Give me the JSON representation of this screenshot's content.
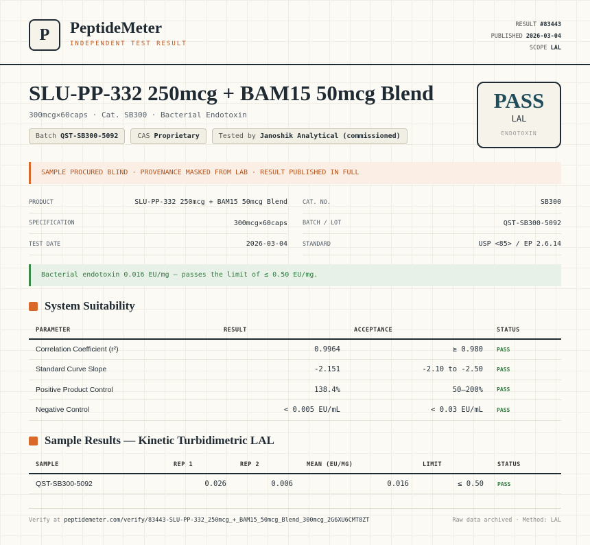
{
  "header": {
    "logo": "P",
    "brand": "PeptideMeter",
    "tagline": "INDEPENDENT TEST RESULT",
    "meta": [
      {
        "label": "RESULT",
        "value": "#83443"
      },
      {
        "label": "PUBLISHED",
        "value": "2026-03-04"
      },
      {
        "label": "SCOPE",
        "value": "LAL"
      }
    ]
  },
  "title": "SLU-PP-332 250mcg + BAM15 50mcg Blend",
  "subtitle": "300mcg×60caps · Cat. SB300 · Bacterial Endotoxin",
  "chips": [
    {
      "label": "Batch",
      "value": "QST-SB300-5092"
    },
    {
      "label": "CAS",
      "value": "Proprietary"
    },
    {
      "label": "Tested by",
      "value": "Janoshik Analytical (commissioned)"
    }
  ],
  "verdict": {
    "result": "PASS",
    "method": "LAL",
    "scope": "ENDOTOXIN"
  },
  "notice": "SAMPLE PROCURED BLIND · PROVENANCE MASKED FROM LAB · RESULT PUBLISHED IN FULL",
  "details": [
    [
      {
        "label": "PRODUCT",
        "value": "SLU-PP-332 250mcg + BAM15 50mcg Blend"
      },
      {
        "label": "CAT. NO.",
        "value": "SB300"
      }
    ],
    [
      {
        "label": "SPECIFICATION",
        "value": "300mcg×60caps"
      },
      {
        "label": "BATCH / LOT",
        "value": "QST-SB300-5092"
      }
    ],
    [
      {
        "label": "TEST DATE",
        "value": "2026-03-04"
      },
      {
        "label": "STANDARD",
        "value": "USP <85> / EP 2.6.14"
      }
    ]
  ],
  "summary": "Bacterial endotoxin 0.016 EU/mg — passes the limit of ≤ 0.50 EU/mg.",
  "suitability": {
    "title": "System Suitability",
    "columns": [
      "PARAMETER",
      "RESULT",
      "ACCEPTANCE",
      "STATUS"
    ],
    "rows": [
      [
        "Correlation Coefficient (r²)",
        "0.9964",
        "≥ 0.980",
        "PASS"
      ],
      [
        "Standard Curve Slope",
        "-2.151",
        "-2.10 to -2.50",
        "PASS"
      ],
      [
        "Positive Product Control",
        "138.4%",
        "50–200%",
        "PASS"
      ],
      [
        "Negative Control",
        "< 0.005 EU/mL",
        "< 0.03 EU/mL",
        "PASS"
      ]
    ]
  },
  "samples": {
    "title": "Sample Results — Kinetic Turbidimetric LAL",
    "columns": [
      "SAMPLE",
      "REP 1",
      "REP 2",
      "MEAN (EU/MG)",
      "LIMIT",
      "STATUS"
    ],
    "rows": [
      [
        "QST-SB300-5092",
        "0.026",
        "0.006",
        "0.016",
        "≤ 0.50",
        "PASS"
      ]
    ]
  },
  "footer": {
    "verify_label": "Verify at",
    "url": "peptidemeter.com/verify/83443-SLU-PP-332_250mcg_+_BAM15_50mcg_Blend_300mcg_2G6XU6CMT8ZT",
    "note": "Raw data archived · Method: LAL"
  }
}
